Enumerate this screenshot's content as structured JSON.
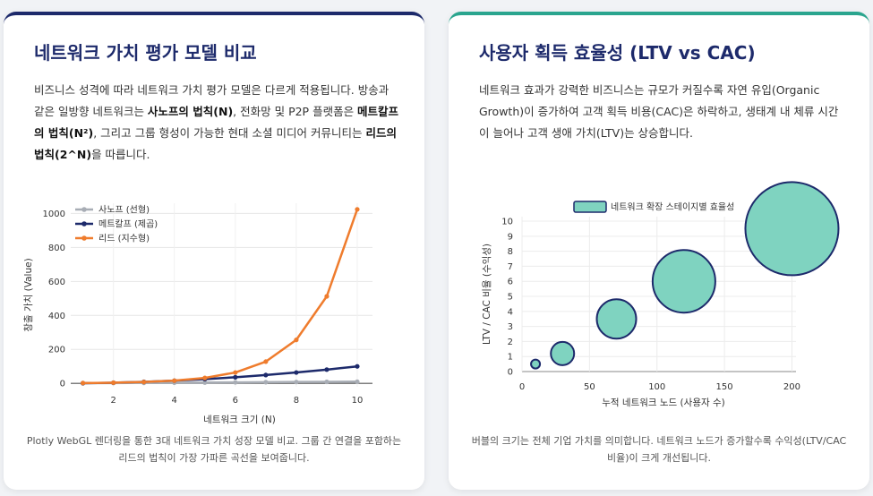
{
  "left": {
    "title": "네트워크 가치 평가 모델 비교",
    "desc_1": "비즈니스 성격에 따라 네트워크 가치 평가 모델은 다르게 적용됩니다. 방송과 같은 일방향 네트워크는 ",
    "desc_b1": "사노프의 법칙(N)",
    "desc_2": ", 전화망 및 P2P 플랫폼은 ",
    "desc_b2": "메트칼프의 법칙(N²)",
    "desc_3": ", 그리고 그룹 형성이 가능한 현대 소셜 미디어 커뮤니티는 ",
    "desc_b3": "리드의 법칙(2^N)",
    "desc_4": "을 따릅니다.",
    "caption": "Plotly WebGL 렌더링을 통한 3대 네트워크 가치 성장 모델 비교. 그룹 간 연결을 포함하는 리드의 법칙이 가장 가파른 곡선을 보여줍니다."
  },
  "right": {
    "title": "사용자 획득 효율성 (LTV vs CAC)",
    "desc": "네트워크 효과가 강력한 비즈니스는 규모가 커질수록 자연 유입(Organic Growth)이 증가하여 고객 획득 비용(CAC)은 하락하고, 생태계 내 체류 시간이 늘어나 고객 생애 가치(LTV)는 상승합니다.",
    "caption": "버블의 크기는 전체 기업 가치를 의미합니다. 네트워크 노드가 증가할수록 수익성(LTV/CAC 비율)이 크게 개선됩니다."
  },
  "chart_data": [
    {
      "type": "line",
      "title": "",
      "xlabel": "네트워크 크기 (N)",
      "ylabel": "창출 가치 (Value)",
      "xlim": [
        0.6,
        10.5
      ],
      "ylim": [
        -20,
        1060
      ],
      "xticks": [
        2,
        4,
        6,
        8,
        10
      ],
      "yticks": [
        0,
        200,
        400,
        600,
        800,
        1000
      ],
      "x": [
        1,
        2,
        3,
        4,
        5,
        6,
        7,
        8,
        9,
        10
      ],
      "series": [
        {
          "name": "사노프 (선형)",
          "color": "#a8adb5",
          "values": [
            1,
            2,
            3,
            4,
            5,
            6,
            7,
            8,
            9,
            10
          ]
        },
        {
          "name": "메트칼프 (제곱)",
          "color": "#1d2a6b",
          "values": [
            1,
            4,
            9,
            16,
            25,
            36,
            49,
            64,
            81,
            100
          ]
        },
        {
          "name": "리드 (지수형)",
          "color": "#ef7c2d",
          "values": [
            2,
            4,
            8,
            16,
            32,
            64,
            128,
            256,
            512,
            1024
          ]
        }
      ],
      "legend": "top-left"
    },
    {
      "type": "scatter",
      "title": "",
      "xlabel": "누적 네트워크 노드 (사용자 수)",
      "ylabel": "LTV / CAC 비율 (수익성)",
      "xlim": [
        0,
        203
      ],
      "ylim": [
        0,
        10.3
      ],
      "xticks": [
        0,
        50,
        100,
        150,
        200
      ],
      "yticks": [
        0,
        1,
        2,
        3,
        4,
        5,
        6,
        7,
        8,
        9,
        10
      ],
      "legend_label": "네트워크 확장 스테이지별 효율성",
      "bubble_color": "#7fd3c0",
      "bubble_edge": "#1d2a6b",
      "points": [
        {
          "x": 10,
          "y": 0.5,
          "size": 5
        },
        {
          "x": 30,
          "y": 1.2,
          "size": 13
        },
        {
          "x": 70,
          "y": 3.5,
          "size": 22
        },
        {
          "x": 120,
          "y": 6.0,
          "size": 35
        },
        {
          "x": 200,
          "y": 9.5,
          "size": 52
        }
      ]
    }
  ]
}
